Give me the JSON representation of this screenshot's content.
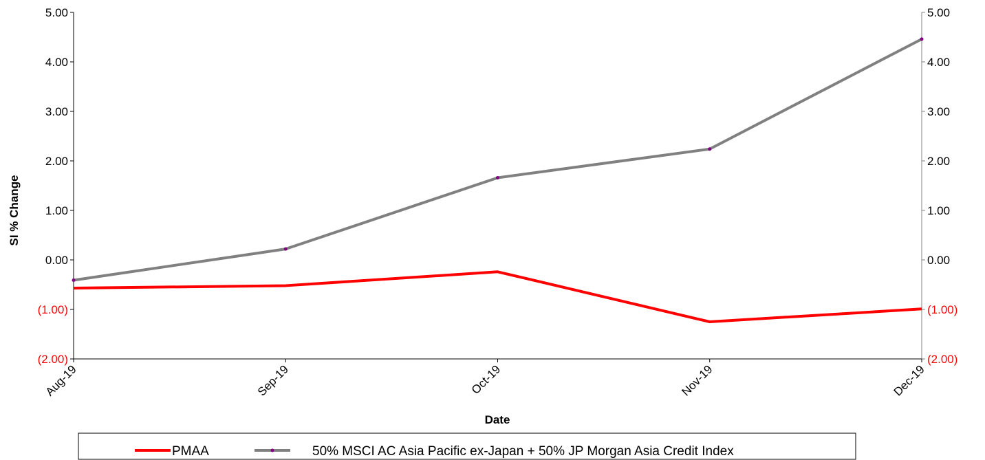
{
  "chart_data": {
    "type": "line",
    "categories": [
      "Aug-19",
      "Sep-19",
      "Oct-19",
      "Nov-19",
      "Dec-19"
    ],
    "series": [
      {
        "name": "PMAA",
        "values": [
          -0.57,
          -0.52,
          -0.24,
          -1.25,
          -0.99
        ],
        "color": "#ff0000"
      },
      {
        "name": "50% MSCI AC Asia Pacific ex-Japan + 50% JP Morgan Asia Credit Index",
        "values": [
          -0.41,
          0.22,
          1.66,
          2.24,
          4.46
        ],
        "color": "#808080",
        "marker_color": "#800080"
      }
    ],
    "yticks": [
      5,
      4,
      3,
      2,
      1,
      0,
      -1,
      -2
    ],
    "ytick_labels": [
      "5.00",
      "4.00",
      "3.00",
      "2.00",
      "1.00",
      "0.00",
      "(1.00)",
      "(2.00)"
    ],
    "ylim": [
      -2,
      5
    ],
    "title": "",
    "xlabel": "Date",
    "ylabel": "SI % Change",
    "secondary_y_axis": true,
    "negative_label_color": "#ff0000",
    "grid": false,
    "legend_position": "bottom"
  }
}
